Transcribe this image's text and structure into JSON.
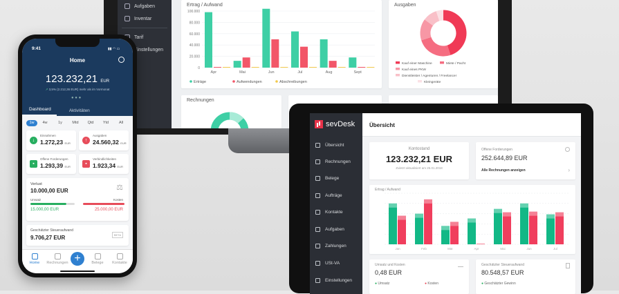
{
  "laptop": {
    "sidebar": [
      {
        "label": "Aufgaben",
        "icon": "check-icon"
      },
      {
        "label": "Inventar",
        "icon": "box-icon"
      },
      {
        "label": "Tarif",
        "icon": "tag-icon"
      },
      {
        "label": "Einstellungen",
        "icon": "gear-icon"
      }
    ],
    "revenue_card": {
      "title": "Ertrag / Aufwand"
    },
    "expenses_card": {
      "title": "Ausgaben"
    },
    "invoices_card": {
      "title": "Rechnungen"
    },
    "colors": {
      "income": "#3ecfa5",
      "expense": "#f25668",
      "depreciation": "#f2c94c"
    }
  },
  "chart_data": [
    {
      "type": "bar",
      "title": "Ertrag / Aufwand",
      "categories": [
        "Apr",
        "Mai",
        "Jun",
        "Jul",
        "Aug",
        "Sept"
      ],
      "y_ticks": [
        "100.000",
        "80.000",
        "60.000",
        "40.000",
        "20.000",
        "0"
      ],
      "ylim": [
        0,
        100000
      ],
      "series": [
        {
          "name": "Erträge",
          "values": [
            98000,
            12000,
            104000,
            64000,
            50000,
            18000
          ]
        },
        {
          "name": "Aufwendungen",
          "values": [
            0,
            18000,
            50000,
            37000,
            12000,
            0
          ]
        },
        {
          "name": "Abschreibungen",
          "values": [
            0,
            0,
            0,
            0,
            0,
            0
          ]
        }
      ],
      "legend_position": "bottom"
    },
    {
      "type": "pie",
      "title": "Ausgaben",
      "labels": [
        "Kauf einer Maschine",
        "Miete / Pacht",
        "Kauf eines PKW",
        "Dienstleister / Agenturen / Freelancer",
        "Kleingeräte"
      ],
      "values": [
        45,
        25,
        15,
        10,
        5
      ],
      "colors": [
        "#f03a56",
        "#f56d81",
        "#f797a5",
        "#f9c0c8",
        "#fbe1e5"
      ],
      "legend_position": "bottom"
    }
  ],
  "phone": {
    "status_time": "9:41",
    "header_title": "Home",
    "main_value": "123.232,21",
    "main_currency": "EUR",
    "subtitle": "3,5% (2.212,36 EUR) mehr als im Vormonat",
    "tabs": [
      "Dashboard",
      "Aktivitäten"
    ],
    "periods": [
      "1w",
      "4w",
      "1y",
      "Mtd",
      "Qtd",
      "Ytd",
      "All"
    ],
    "cards": [
      {
        "label": "Einnahmen",
        "value": "1.272,23",
        "currency": "EUR",
        "color": "#27ae60",
        "icon": "arrow-down-icon"
      },
      {
        "label": "Ausgaben",
        "value": "24.560,32",
        "currency": "EUR",
        "color": "#e74c5a",
        "icon": "arrow-up-icon"
      },
      {
        "label": "Offene Forderungen",
        "value": "1.293,39",
        "currency": "EUR",
        "color": "#27ae60",
        "icon": "money-icon"
      },
      {
        "label": "Verbindlichkeiten",
        "value": "1.923,34",
        "currency": "EUR",
        "color": "#e74c5a",
        "icon": "money-icon"
      }
    ],
    "profit": {
      "label": "Verlust",
      "value": "10.000,00 EUR",
      "revenue_label": "Umsatz",
      "revenue": "15.000,00 EUR",
      "costs_label": "Kosten",
      "costs": "25.000,00 EUR"
    },
    "tax": {
      "label": "Geschätzter Steueraufwand",
      "value": "9.706,27 EUR",
      "badge": "BETA"
    },
    "nav": [
      "Home",
      "Rechnungen",
      "",
      "Belege",
      "Kontakte"
    ]
  },
  "tablet": {
    "logo": "sevDesk",
    "page_title": "Übersicht",
    "nav": [
      "Übersicht",
      "Rechnungen",
      "Belege",
      "Aufträge",
      "Kontakte",
      "Aufgaben",
      "Zahlungen",
      "USt-VA",
      "Einstellungen"
    ],
    "balance": {
      "label": "Kontostand",
      "value": "123.232,21 EUR",
      "sub": "Zuletzt aktualisiert am 25.01.2018"
    },
    "receivables": {
      "label": "Offene Forderungen",
      "value": "252.644,89 EUR",
      "link": "Alle Rechnungen anzeigen"
    },
    "chart_title": "Ertrag / Aufwand",
    "chart": {
      "categories": [
        "Jan",
        "Feb",
        "Mär",
        "Apr",
        "Mai",
        "Jun",
        "Jul"
      ],
      "series": [
        {
          "name": "Erträge",
          "values": [
            60000,
            45000,
            27000,
            38000,
            52000,
            60000,
            44000
          ]
        },
        {
          "name": "Aufwendungen",
          "values": [
            42000,
            66000,
            33000,
            0,
            47000,
            48000,
            47000
          ]
        }
      ],
      "ylim": [
        0,
        75000
      ]
    },
    "bottom_left": {
      "label": "Umsatz und Kosten",
      "value": "0,48 EUR",
      "row1": "Umsatz",
      "row2": "Kosten"
    },
    "bottom_right": {
      "label": "Geschätzter Steueraufwand",
      "value": "80.548,57 EUR",
      "row1": "Geschätzter Gewinn"
    }
  }
}
